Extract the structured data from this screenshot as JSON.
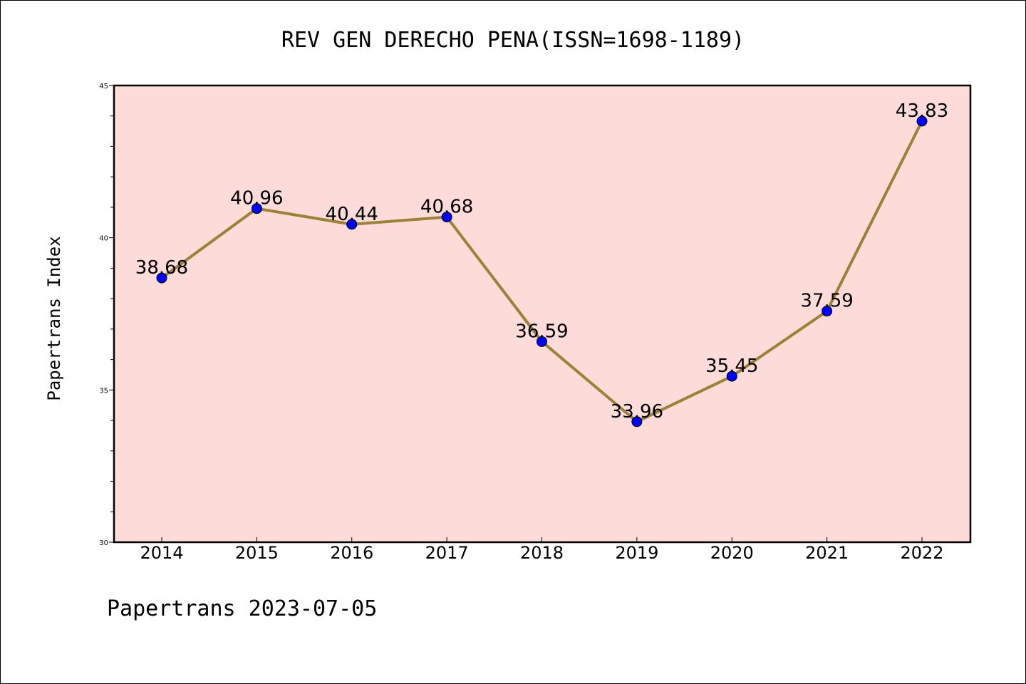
{
  "chart_data": {
    "type": "line",
    "title": "REV GEN DERECHO PENA(ISSN=1698-1189)",
    "xlabel": "",
    "ylabel": "Papertrans Index",
    "categories": [
      "2014",
      "2015",
      "2016",
      "2017",
      "2018",
      "2019",
      "2020",
      "2021",
      "2022"
    ],
    "series": [
      {
        "values": [
          38.68,
          40.96,
          40.44,
          40.68,
          36.59,
          33.96,
          35.45,
          37.59,
          43.83
        ],
        "labels": [
          "38.68",
          "40.96",
          "40.44",
          "40.68",
          "36.59",
          "33.96",
          "35.45",
          "37.59",
          "43.83"
        ]
      }
    ],
    "ylim": [
      30,
      45
    ],
    "yticks": [
      "30",
      "35",
      "40",
      "45"
    ],
    "grid": false,
    "legend": "none",
    "colors": {
      "plot_background": "#fddbd8",
      "line": "#9b8238",
      "marker": "#0000ff"
    }
  },
  "footer": "Papertrans 2023-07-05"
}
